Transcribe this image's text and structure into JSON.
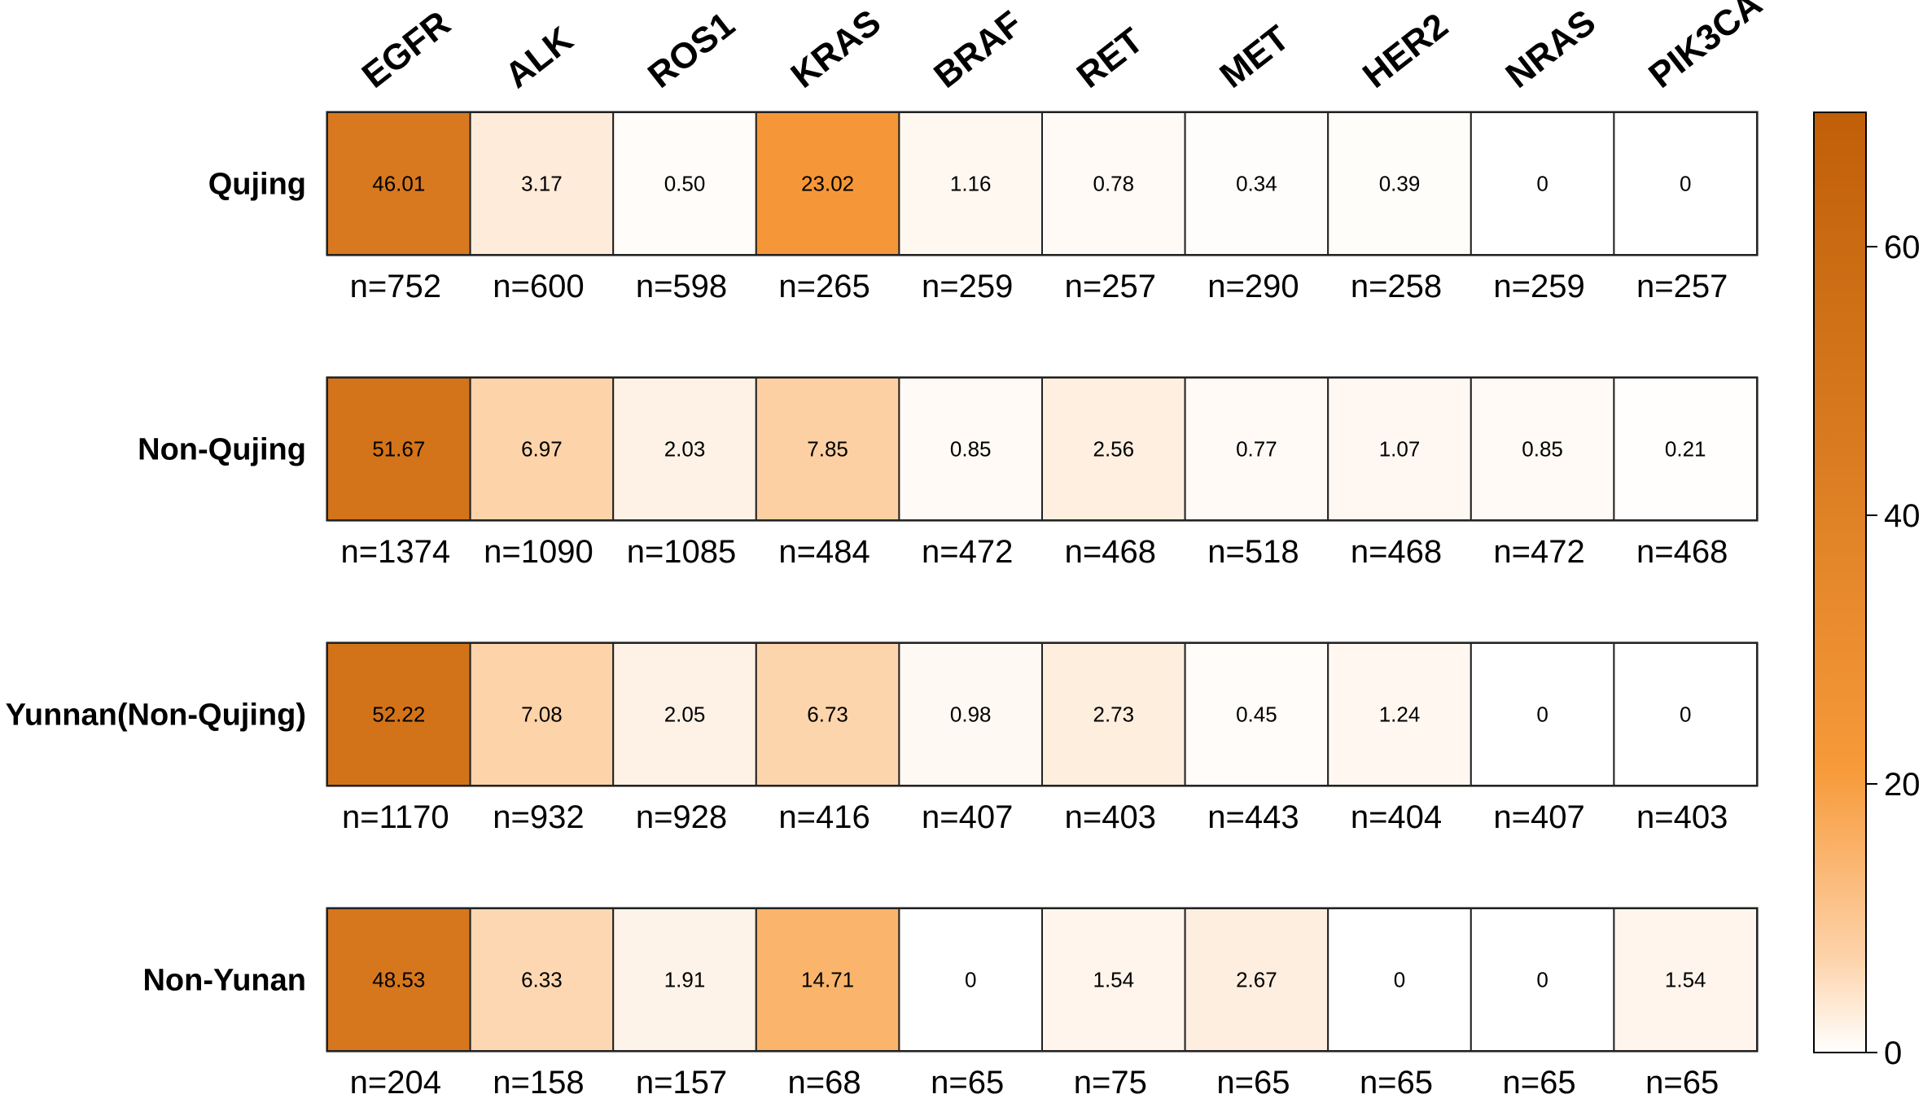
{
  "chart_data": {
    "type": "heatmap",
    "columns": [
      "EGFR",
      "ALK",
      "ROS1",
      "KRAS",
      "BRAF",
      "RET",
      "MET",
      "HER2",
      "NRAS",
      "PIK3CA"
    ],
    "rows": [
      "Qujing",
      "Non-Qujing",
      "Yunnan(Non-Qujing)",
      "Non-Yunan"
    ],
    "values": [
      [
        46.01,
        3.17,
        0.5,
        23.02,
        1.16,
        0.78,
        0.34,
        0.39,
        0,
        0
      ],
      [
        51.67,
        6.97,
        2.03,
        7.85,
        0.85,
        2.56,
        0.77,
        1.07,
        0.85,
        0.21
      ],
      [
        52.22,
        7.08,
        2.05,
        6.73,
        0.98,
        2.73,
        0.45,
        1.24,
        0,
        0
      ],
      [
        48.53,
        6.33,
        1.91,
        14.71,
        0,
        1.54,
        2.67,
        0,
        0,
        1.54
      ]
    ],
    "value_labels": [
      [
        "46.01",
        "3.17",
        "0.50",
        "23.02",
        "1.16",
        "0.78",
        "0.34",
        "0.39",
        "0",
        "0"
      ],
      [
        "51.67",
        "6.97",
        "2.03",
        "7.85",
        "0.85",
        "2.56",
        "0.77",
        "1.07",
        "0.85",
        "0.21"
      ],
      [
        "52.22",
        "7.08",
        "2.05",
        "6.73",
        "0.98",
        "2.73",
        "0.45",
        "1.24",
        "0",
        "0"
      ],
      [
        "48.53",
        "6.33",
        "1.91",
        "14.71",
        "0",
        "1.54",
        "2.67",
        "0",
        "0",
        "1.54"
      ]
    ],
    "n_labels": [
      [
        "n=752",
        "n=600",
        "n=598",
        "n=265",
        "n=259",
        "n=257",
        "n=290",
        "n=258",
        "n=259",
        "n=257"
      ],
      [
        "n=1374",
        "n=1090",
        "n=1085",
        "n=484",
        "n=472",
        "n=468",
        "n=518",
        "n=468",
        "n=472",
        "n=468"
      ],
      [
        "n=1170",
        "n=932",
        "n=928",
        "n=416",
        "n=407",
        "n=403",
        "n=443",
        "n=404",
        "n=407",
        "n=403"
      ],
      [
        "n=204",
        "n=158",
        "n=157",
        "n=68",
        "n=65",
        "n=75",
        "n=65",
        "n=65",
        "n=65",
        "n=65"
      ]
    ],
    "colorbar": {
      "range": [
        0,
        70
      ],
      "ticks": [
        0,
        20,
        40,
        60
      ],
      "colors": [
        "#ffffff",
        "#fdd3aa",
        "#f79a3a",
        "#d97a20",
        "#c05f07"
      ],
      "stops": [
        0,
        0.1,
        0.3,
        0.65,
        1
      ]
    },
    "title": "",
    "xlabel": "",
    "ylabel": ""
  }
}
